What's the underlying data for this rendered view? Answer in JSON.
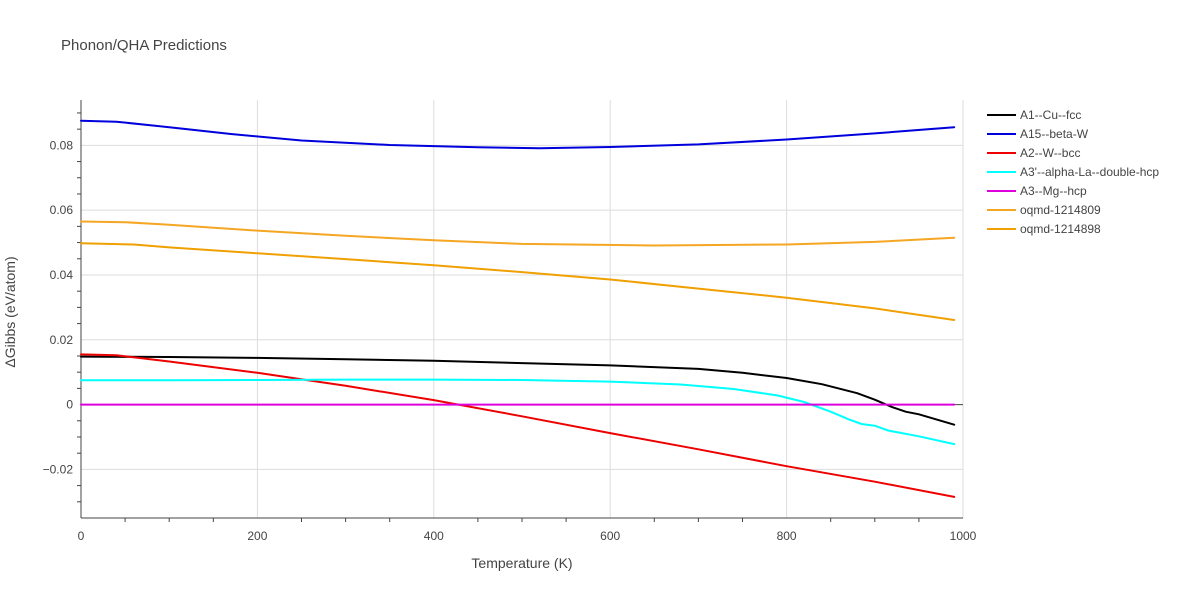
{
  "chart_data": {
    "type": "line",
    "title": "Phonon/QHA Predictions",
    "xlabel": "Temperature (K)",
    "ylabel": "ΔGibbs (eV/atom)",
    "xlim": [
      0,
      1000
    ],
    "ylim": [
      -0.035,
      0.094
    ],
    "xticks": [
      0,
      200,
      400,
      600,
      800,
      1000
    ],
    "xtick_labels": [
      "0",
      "200",
      "400",
      "600",
      "800",
      "1000"
    ],
    "yticks": [
      -0.02,
      0,
      0.02,
      0.04,
      0.06,
      0.08
    ],
    "ytick_labels": [
      "−0.02",
      "0",
      "0.02",
      "0.04",
      "0.06",
      "0.08"
    ],
    "grid": true,
    "legend_position": "right",
    "series": [
      {
        "name": "A1--Cu--fcc",
        "color": "#000000",
        "x": [
          0,
          100,
          200,
          300,
          400,
          500,
          600,
          700,
          750,
          800,
          840,
          880,
          900,
          920,
          935,
          950,
          990
        ],
        "y": [
          0.0148,
          0.0147,
          0.0144,
          0.014,
          0.0135,
          0.0128,
          0.0121,
          0.011,
          0.0098,
          0.0082,
          0.0063,
          0.0035,
          0.0015,
          -0.0008,
          -0.0022,
          -0.003,
          -0.0062
        ]
      },
      {
        "name": "A15--beta-W",
        "color": "#0000dd",
        "x": [
          0,
          40,
          100,
          170,
          250,
          350,
          450,
          520,
          600,
          700,
          800,
          900,
          990
        ],
        "y": [
          0.0876,
          0.0873,
          0.0856,
          0.0835,
          0.0815,
          0.0801,
          0.0794,
          0.0791,
          0.0795,
          0.0803,
          0.0818,
          0.0837,
          0.0856
        ]
      },
      {
        "name": "A2--W--bcc",
        "color": "#ee0000",
        "x": [
          0,
          40,
          100,
          200,
          300,
          400,
          500,
          600,
          700,
          800,
          900,
          990
        ],
        "y": [
          0.0155,
          0.0152,
          0.0133,
          0.0098,
          0.0058,
          0.0014,
          -0.0036,
          -0.0088,
          -0.0138,
          -0.019,
          -0.0238,
          -0.0285
        ]
      },
      {
        "name": "A3'--alpha-La--double-hcp",
        "color": "#00ffff",
        "x": [
          0,
          100,
          200,
          300,
          400,
          500,
          600,
          680,
          740,
          790,
          820,
          850,
          870,
          885,
          900,
          915,
          950,
          990
        ],
        "y": [
          0.0075,
          0.0075,
          0.0076,
          0.0077,
          0.0077,
          0.0076,
          0.0071,
          0.0062,
          0.0048,
          0.0028,
          0.0008,
          -0.0022,
          -0.0045,
          -0.006,
          -0.0065,
          -0.008,
          -0.0098,
          -0.0122
        ]
      },
      {
        "name": "A3--Mg--hcp",
        "color": "#dd00dd",
        "x": [
          0,
          990
        ],
        "y": [
          0,
          0
        ]
      },
      {
        "name": "oqmd-1214809",
        "color": "#f5a623",
        "x": [
          0,
          50,
          100,
          200,
          300,
          400,
          500,
          650,
          800,
          900,
          990
        ],
        "y": [
          0.0565,
          0.0563,
          0.0555,
          0.0537,
          0.0521,
          0.0507,
          0.0496,
          0.0491,
          0.0494,
          0.0502,
          0.0515
        ]
      },
      {
        "name": "oqmd-1214898",
        "color": "#f0a000",
        "x": [
          0,
          60,
          100,
          200,
          300,
          400,
          500,
          600,
          700,
          800,
          900,
          990
        ],
        "y": [
          0.0498,
          0.0494,
          0.0485,
          0.0467,
          0.0449,
          0.043,
          0.0409,
          0.0386,
          0.0358,
          0.033,
          0.0297,
          0.0261
        ]
      }
    ]
  }
}
